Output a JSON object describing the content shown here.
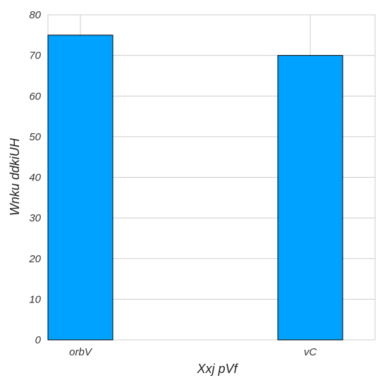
{
  "chart_data": {
    "type": "bar",
    "title": "",
    "xlabel": "Xxj pVf",
    "ylabel": "Wnku ddkiUH",
    "categories": [
      "orbV",
      "vC"
    ],
    "values": [
      75,
      70
    ],
    "ylim": [
      0,
      80
    ],
    "yticks": [
      0,
      10,
      20,
      30,
      40,
      50,
      60,
      70,
      80
    ],
    "grid": true,
    "legend": "none",
    "colors": {
      "bar": "#00a2ff",
      "bar_edge": "#000000",
      "grid": "#cccccc",
      "frame": "#cccccc"
    }
  }
}
